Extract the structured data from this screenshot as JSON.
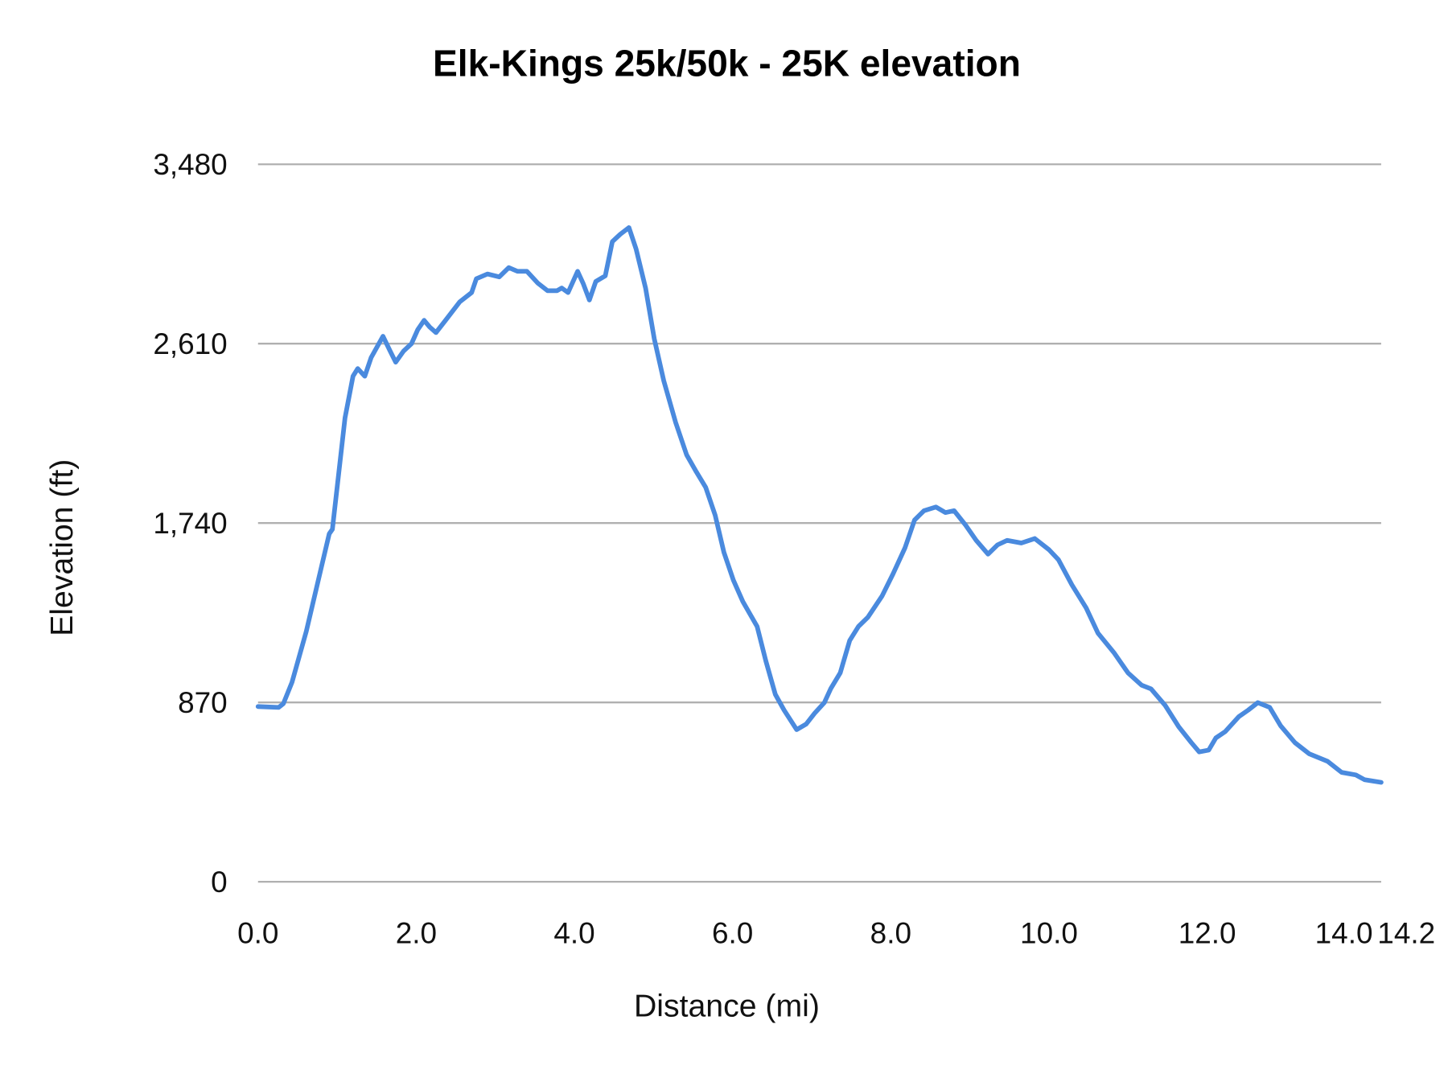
{
  "chart_data": {
    "type": "line",
    "title": "Elk-Kings 25k/50k - 25K elevation",
    "xlabel": "Distance (mi)",
    "ylabel": "Elevation (ft)",
    "xlim": [
      0,
      14.2
    ],
    "ylim": [
      0,
      3480
    ],
    "x_ticks": [
      "0.0",
      "2.0",
      "4.0",
      "6.0",
      "8.0",
      "10.0",
      "12.0",
      "14.0",
      "14.2"
    ],
    "x_tick_values": [
      0,
      2,
      4,
      6,
      8,
      10,
      12,
      14,
      14.2
    ],
    "y_ticks": [
      "0",
      "870",
      "1,740",
      "2,610",
      "3,480"
    ],
    "y_tick_values": [
      0,
      870,
      1740,
      2610,
      3480
    ],
    "grid": "horizontal",
    "legend": "none",
    "color": "#4a8ade",
    "grid_color": "#b0b0b0",
    "series": [
      {
        "x": [
          0,
          0.26,
          0.32,
          0.43,
          0.61,
          0.79,
          0.9,
          0.94,
          1.02,
          1.1,
          1.2,
          1.26,
          1.35,
          1.43,
          1.58,
          1.67,
          1.74,
          1.84,
          1.94,
          2.02,
          2.1,
          2.17,
          2.25,
          2.37,
          2.55,
          2.7,
          2.76,
          2.9,
          3.05,
          3.17,
          3.28,
          3.4,
          3.54,
          3.66,
          3.78,
          3.84,
          3.92,
          4.04,
          4.11,
          4.19,
          4.27,
          4.39,
          4.48,
          4.58,
          4.69,
          4.78,
          4.9,
          5.01,
          5.13,
          5.28,
          5.42,
          5.54,
          5.66,
          5.78,
          5.89,
          6.01,
          6.13,
          6.31,
          6.42,
          6.54,
          6.65,
          6.81,
          6.93,
          7.04,
          7.16,
          7.24,
          7.36,
          7.48,
          7.59,
          7.71,
          7.89,
          8.03,
          8.18,
          8.3,
          8.42,
          8.57,
          8.69,
          8.8,
          8.94,
          9.08,
          9.23,
          9.35,
          9.47,
          9.65,
          9.82,
          10.0,
          10.12,
          10.29,
          10.47,
          10.62,
          10.82,
          11.0,
          11.17,
          11.29,
          11.47,
          11.64,
          11.8,
          11.9,
          12.02,
          12.11,
          12.23,
          12.4,
          12.52,
          12.64,
          12.79,
          12.93,
          13.11,
          13.29,
          13.52,
          13.7,
          13.88,
          13.99,
          14.2
        ],
        "y": [
          850,
          846,
          864,
          968,
          1215,
          1508,
          1688,
          1710,
          1980,
          2250,
          2452,
          2489,
          2452,
          2543,
          2646,
          2574,
          2520,
          2574,
          2610,
          2678,
          2723,
          2691,
          2664,
          2723,
          2813,
          2858,
          2925,
          2948,
          2934,
          2979,
          2961,
          2961,
          2903,
          2867,
          2867,
          2880,
          2858,
          2961,
          2903,
          2822,
          2912,
          2939,
          3105,
          3141,
          3173,
          3069,
          2880,
          2633,
          2430,
          2228,
          2070,
          1989,
          1913,
          1778,
          1598,
          1463,
          1359,
          1238,
          1071,
          909,
          833,
          738,
          765,
          819,
          869,
          936,
          1013,
          1170,
          1238,
          1283,
          1386,
          1494,
          1620,
          1755,
          1800,
          1818,
          1791,
          1800,
          1733,
          1656,
          1589,
          1634,
          1656,
          1643,
          1665,
          1611,
          1562,
          1440,
          1328,
          1206,
          1112,
          1013,
          954,
          936,
          855,
          752,
          675,
          630,
          639,
          698,
          729,
          801,
          833,
          869,
          846,
          756,
          675,
          621,
          585,
          531,
          518,
          495,
          482
        ]
      }
    ]
  }
}
